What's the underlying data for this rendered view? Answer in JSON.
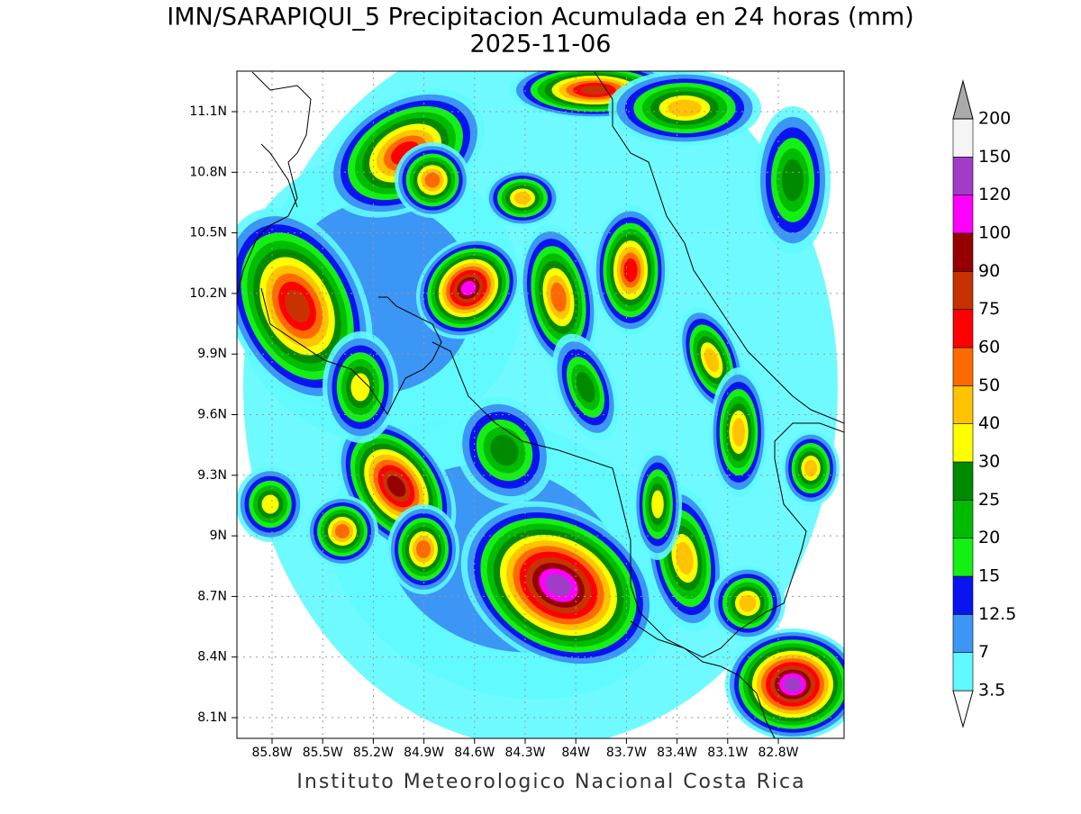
{
  "title": "IMN/SARAPIQUI_5 Precipitacion Acumulada en 24 horas (mm)",
  "subtitle": "2025-11-06",
  "map": {
    "lat_ticks": [
      "11.1N",
      "10.8N",
      "10.5N",
      "10.2N",
      "9.9N",
      "9.6N",
      "9.3N",
      "9N",
      "8.7N",
      "8.4N",
      "8.1N"
    ],
    "lon_ticks": [
      "85.8W",
      "85.5W",
      "85.2W",
      "84.9W",
      "84.6W",
      "84.3W",
      "84W",
      "83.7W",
      "83.4W",
      "83.1W",
      "82.8W"
    ]
  },
  "colorbar": {
    "levels": [
      3.5,
      7,
      12.5,
      15,
      20,
      25,
      30,
      40,
      50,
      60,
      75,
      90,
      100,
      120,
      150,
      200
    ],
    "colors": [
      "#ffffff",
      "#5ff9ff",
      "#3c96f5",
      "#0a14f0",
      "#14f014",
      "#00bc00",
      "#008a00",
      "#ffff00",
      "#ffc300",
      "#ff6a00",
      "#ff0000",
      "#c83200",
      "#960000",
      "#ff00ff",
      "#a03cc8",
      "#f5f5f5",
      "#aaaaaa"
    ]
  },
  "footer": "Instituto Meteorologico Nacional Costa Rica"
}
